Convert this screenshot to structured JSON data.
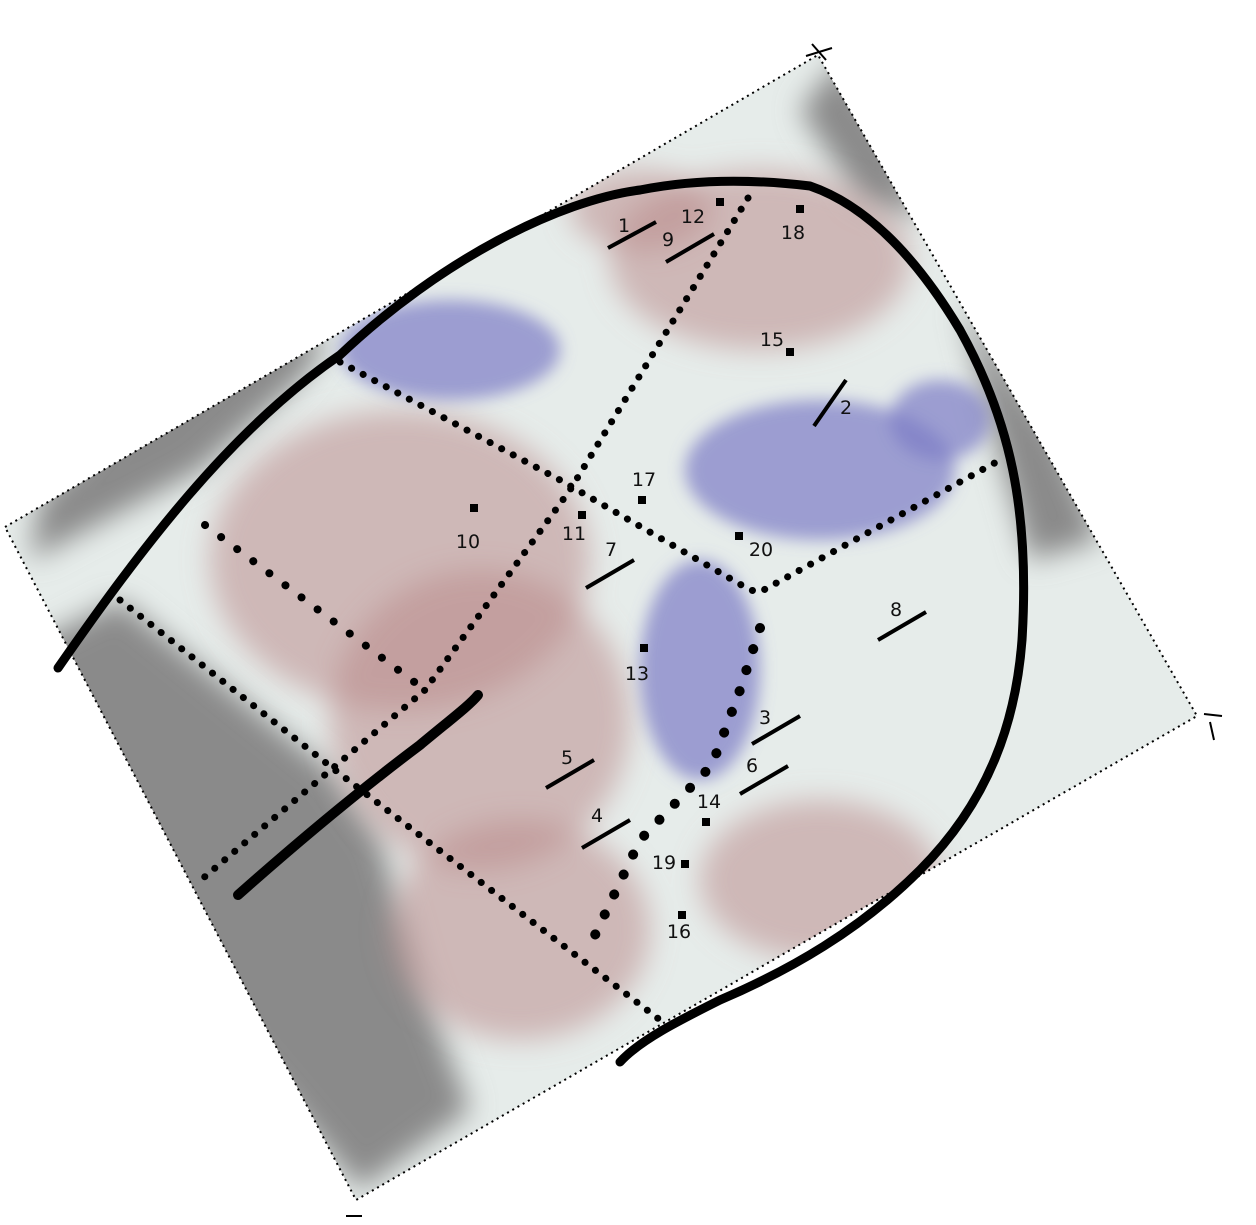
{
  "colors": {
    "background": "#ffffff",
    "map_base": "#e6ecea",
    "warm_region": "#b98c8c",
    "cool_region": "#7c7cc6",
    "gray_region": "#8a8a8a",
    "boundary": "#000000",
    "dotted": "#000000"
  },
  "markers": [
    {
      "id": "1",
      "kind": "bar"
    },
    {
      "id": "2",
      "kind": "bar"
    },
    {
      "id": "3",
      "kind": "bar"
    },
    {
      "id": "4",
      "kind": "bar"
    },
    {
      "id": "5",
      "kind": "bar"
    },
    {
      "id": "6",
      "kind": "bar"
    },
    {
      "id": "7",
      "kind": "bar"
    },
    {
      "id": "8",
      "kind": "bar"
    },
    {
      "id": "9",
      "kind": "bar"
    },
    {
      "id": "10",
      "kind": "square"
    },
    {
      "id": "11",
      "kind": "square"
    },
    {
      "id": "12",
      "kind": "square"
    },
    {
      "id": "13",
      "kind": "square"
    },
    {
      "id": "14",
      "kind": "square"
    },
    {
      "id": "15",
      "kind": "square"
    },
    {
      "id": "16",
      "kind": "square"
    },
    {
      "id": "17",
      "kind": "square"
    },
    {
      "id": "18",
      "kind": "square"
    },
    {
      "id": "19",
      "kind": "square"
    },
    {
      "id": "20",
      "kind": "square"
    }
  ]
}
